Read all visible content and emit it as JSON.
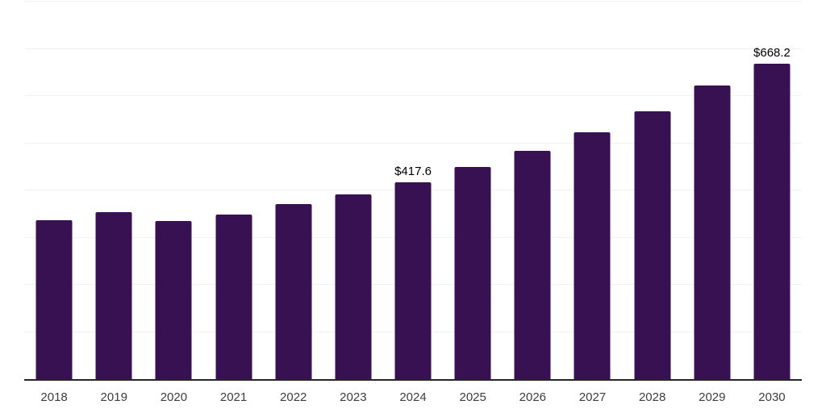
{
  "chart_data": {
    "type": "bar",
    "title": "",
    "xlabel": "",
    "ylabel": "",
    "categories": [
      "2018",
      "2019",
      "2020",
      "2021",
      "2022",
      "2023",
      "2024",
      "2025",
      "2026",
      "2027",
      "2028",
      "2029",
      "2030"
    ],
    "values": [
      336.1,
      353.6,
      335.2,
      348.5,
      370.6,
      391.2,
      417.6,
      449.3,
      483.5,
      522.8,
      567.2,
      621.9,
      668.2
    ],
    "data_labels": [
      "",
      "",
      "",
      "",
      "",
      "",
      "$417.6",
      "",
      "",
      "",
      "",
      "",
      "$668.2"
    ],
    "ylim": [
      0,
      800
    ],
    "gridline_step": 100,
    "grid": "horizontal",
    "legend_position": "none",
    "y_axis_tick_labels_visible": false,
    "colors": {
      "bar": "#371152",
      "axis_line": "#262626",
      "gridline": "#f2f2f2",
      "tick_label": "#3d3d3d",
      "data_label": "#000000",
      "background": "#ffffff"
    }
  }
}
